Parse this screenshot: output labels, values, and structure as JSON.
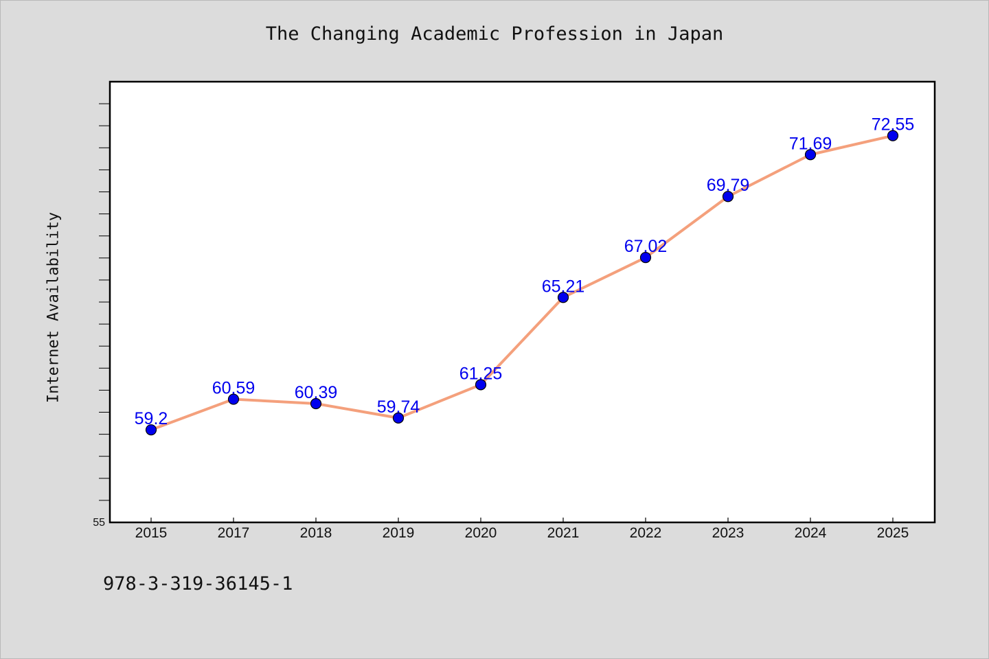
{
  "chart_data": {
    "type": "line",
    "title": "The Changing Academic Profession in Japan",
    "xlabel": "",
    "ylabel": "Internet Availability",
    "categories": [
      "2015",
      "2017",
      "2018",
      "2019",
      "2020",
      "2021",
      "2022",
      "2023",
      "2024",
      "2025"
    ],
    "series": [
      {
        "values": [
          59.2,
          60.59,
          60.39,
          59.74,
          61.25,
          65.21,
          67.02,
          69.79,
          71.69,
          72.55
        ],
        "labels": [
          "59.2",
          "60.59",
          "60.39",
          "59.74",
          "61.25",
          "65.21",
          "67.02",
          "69.79",
          "71.69",
          "72.55"
        ]
      }
    ],
    "ylim": [
      55,
      75
    ],
    "y_tick_labels": [
      "55"
    ],
    "grid": false,
    "line_color": "#f4a07c",
    "marker_color": "#0000ee",
    "data_label_color": "#0000ee"
  },
  "footer": {
    "code": "978-3-319-36145-1"
  }
}
